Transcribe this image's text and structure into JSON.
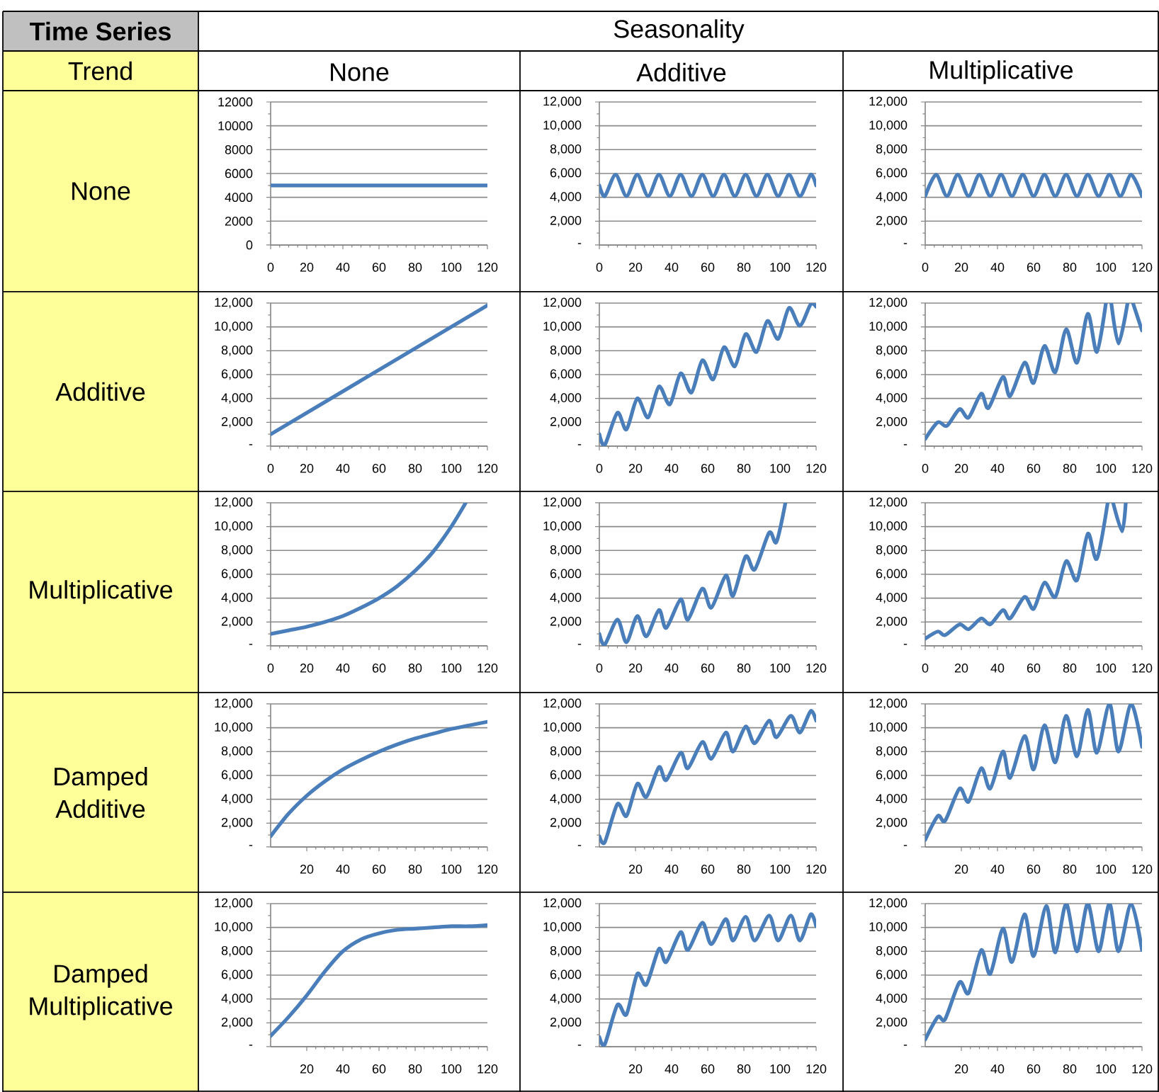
{
  "chart_data": [
    {
      "type": "other",
      "title": "Time Series",
      "annotations": [
        "Seasonality",
        "Trend",
        "None",
        "Additive",
        "Multiplicative",
        "None",
        "Additive",
        "Multiplicative",
        "Damped Additive",
        "Damped Multiplicative"
      ]
    },
    {
      "type": "line",
      "x": [
        0,
        120
      ],
      "values": [
        5000,
        5000
      ],
      "color": "#4a7ebb",
      "xlim": [
        0,
        120
      ],
      "ylim": [
        0,
        12000
      ],
      "xticks": [
        0,
        20,
        40,
        60,
        80,
        100,
        120
      ],
      "yticks": [
        0,
        2000,
        4000,
        6000,
        8000,
        10000,
        12000
      ],
      "grid": "y"
    },
    {
      "type": "line",
      "x": [
        0,
        3,
        9,
        15,
        21,
        27,
        33,
        39,
        45,
        51,
        57,
        63,
        69,
        75,
        81,
        87,
        93,
        99,
        105,
        111,
        117,
        120
      ],
      "values": [
        5000,
        4100,
        5900,
        4100,
        5900,
        4100,
        5900,
        4100,
        5900,
        4100,
        5900,
        4100,
        5900,
        4100,
        5900,
        4100,
        5900,
        4100,
        5900,
        4100,
        5900,
        5000
      ],
      "color": "#4a7ebb",
      "xlim": [
        0,
        120
      ],
      "ylim": [
        0,
        12000
      ],
      "xticks": [
        0,
        20,
        40,
        60,
        80,
        100,
        120
      ],
      "yticks": [
        {
          "value": 0,
          "label": "-"
        },
        {
          "value": 2000,
          "label": "2,000"
        },
        {
          "value": 4000,
          "label": "4,000"
        },
        {
          "value": 6000,
          "label": "6,000"
        },
        {
          "value": 8000,
          "label": "8,000"
        },
        {
          "value": 10000,
          "label": "10,000"
        },
        {
          "value": 12000,
          "label": "12,000"
        }
      ],
      "grid": "y"
    },
    {
      "type": "line",
      "x": [
        0,
        6,
        12,
        18,
        24,
        30,
        36,
        42,
        48,
        54,
        60,
        66,
        72,
        78,
        84,
        90,
        96,
        102,
        108,
        114,
        120
      ],
      "values": [
        4100,
        5900,
        4100,
        5900,
        4100,
        5900,
        4100,
        5900,
        4100,
        5900,
        4100,
        5900,
        4100,
        5900,
        4100,
        5900,
        4100,
        5900,
        4100,
        5900,
        4100
      ],
      "color": "#4a7ebb",
      "xlim": [
        0,
        120
      ],
      "ylim": [
        0,
        12000
      ],
      "xticks": [
        0,
        20,
        40,
        60,
        80,
        100,
        120
      ],
      "yticks": [
        {
          "value": 0,
          "label": "-"
        },
        {
          "value": 2000,
          "label": "2,000"
        },
        {
          "value": 4000,
          "label": "4,000"
        },
        {
          "value": 6000,
          "label": "6,000"
        },
        {
          "value": 8000,
          "label": "8,000"
        },
        {
          "value": 10000,
          "label": "10,000"
        },
        {
          "value": 12000,
          "label": "12,000"
        }
      ],
      "grid": "y"
    },
    {
      "type": "line",
      "x": [
        0,
        120
      ],
      "values": [
        1000,
        11800
      ],
      "color": "#4a7ebb",
      "xlim": [
        0,
        120
      ],
      "ylim": [
        0,
        12000
      ],
      "xticks": [
        0,
        20,
        40,
        60,
        80,
        100,
        120
      ],
      "yticks": [
        {
          "value": 0,
          "label": "-"
        },
        {
          "value": 2000,
          "label": "2,000"
        },
        {
          "value": 4000,
          "label": "4,000"
        },
        {
          "value": 6000,
          "label": "6,000"
        },
        {
          "value": 8000,
          "label": "8,000"
        },
        {
          "value": 10000,
          "label": "10,000"
        },
        {
          "value": 12000,
          "label": "12,000"
        }
      ],
      "grid": "y"
    },
    {
      "type": "line",
      "x": [
        0,
        3,
        10,
        15,
        21,
        27,
        33,
        39,
        45,
        51,
        57,
        63,
        69,
        75,
        81,
        87,
        93,
        99,
        105,
        111,
        117,
        120
      ],
      "values": [
        1000,
        100,
        2800,
        1400,
        4000,
        2400,
        5000,
        3500,
        6100,
        4500,
        7200,
        5600,
        8300,
        6700,
        9400,
        7900,
        10500,
        9000,
        11600,
        10100,
        11900,
        11700
      ],
      "color": "#4a7ebb",
      "xlim": [
        0,
        120
      ],
      "ylim": [
        0,
        12000
      ],
      "xticks": [
        0,
        20,
        40,
        60,
        80,
        100,
        120
      ],
      "yticks": [
        {
          "value": 0,
          "label": "-"
        },
        {
          "value": 2000,
          "label": "2,000"
        },
        {
          "value": 4000,
          "label": "4,000"
        },
        {
          "value": 6000,
          "label": "6,000"
        },
        {
          "value": 8000,
          "label": "8,000"
        },
        {
          "value": 10000,
          "label": "10,000"
        },
        {
          "value": 12000,
          "label": "12,000"
        }
      ],
      "grid": "y"
    },
    {
      "type": "line",
      "x": [
        0,
        7,
        12,
        19,
        24,
        31,
        35,
        43,
        47,
        55,
        60,
        66,
        72,
        78,
        84,
        90,
        95,
        100,
        101.5,
        103,
        107,
        112,
        113.5,
        115,
        120
      ],
      "values": [
        600,
        2000,
        1700,
        3100,
        2400,
        4400,
        3200,
        5800,
        4200,
        7000,
        5300,
        8400,
        6200,
        9800,
        7000,
        11100,
        7900,
        12000,
        null,
        12000,
        8600,
        12000,
        null,
        12000,
        9700
      ],
      "color": "#4a7ebb",
      "xlim": [
        0,
        120
      ],
      "ylim": [
        0,
        12000
      ],
      "xticks": [
        0,
        20,
        40,
        60,
        80,
        100,
        120
      ],
      "yticks": [
        {
          "value": 0,
          "label": "-"
        },
        {
          "value": 2000,
          "label": "2,000"
        },
        {
          "value": 4000,
          "label": "4,000"
        },
        {
          "value": 6000,
          "label": "6,000"
        },
        {
          "value": 8000,
          "label": "8,000"
        },
        {
          "value": 10000,
          "label": "10,000"
        },
        {
          "value": 12000,
          "label": "12,000"
        }
      ],
      "grid": "y"
    },
    {
      "type": "line",
      "x": [
        0,
        10,
        20,
        30,
        40,
        50,
        60,
        70,
        80,
        90,
        100,
        108
      ],
      "values": [
        1000,
        1300,
        1600,
        2000,
        2500,
        3200,
        4000,
        5000,
        6300,
        7900,
        10000,
        12000
      ],
      "color": "#4a7ebb",
      "xlim": [
        0,
        120
      ],
      "ylim": [
        0,
        12000
      ],
      "xticks": [
        0,
        20,
        40,
        60,
        80,
        100,
        120
      ],
      "yticks": [
        {
          "value": 0,
          "label": "-"
        },
        {
          "value": 2000,
          "label": "2,000"
        },
        {
          "value": 4000,
          "label": "4,000"
        },
        {
          "value": 6000,
          "label": "6,000"
        },
        {
          "value": 8000,
          "label": "8,000"
        },
        {
          "value": 10000,
          "label": "10,000"
        },
        {
          "value": 12000,
          "label": "12,000"
        }
      ],
      "grid": "y"
    },
    {
      "type": "line",
      "x": [
        0,
        3,
        10,
        15,
        21,
        26,
        33,
        37,
        45,
        49,
        57,
        62,
        70,
        74,
        81,
        86,
        94,
        98,
        103
      ],
      "values": [
        1000,
        100,
        2200,
        300,
        2500,
        800,
        3000,
        1500,
        3900,
        2200,
        4800,
        3200,
        5900,
        4200,
        7500,
        6400,
        9500,
        8700,
        12000
      ],
      "color": "#4a7ebb",
      "xlim": [
        0,
        120
      ],
      "ylim": [
        0,
        12000
      ],
      "xticks": [
        0,
        20,
        40,
        60,
        80,
        100,
        120
      ],
      "yticks": [
        {
          "value": 0,
          "label": "-"
        },
        {
          "value": 2000,
          "label": "2,000"
        },
        {
          "value": 4000,
          "label": "4,000"
        },
        {
          "value": 6000,
          "label": "6,000"
        },
        {
          "value": 8000,
          "label": "8,000"
        },
        {
          "value": 10000,
          "label": "10,000"
        },
        {
          "value": 12000,
          "label": "12,000"
        }
      ],
      "grid": "y"
    },
    {
      "type": "line",
      "x": [
        0,
        7,
        11,
        19,
        24,
        31,
        36,
        43,
        47,
        55,
        60,
        66,
        72,
        78,
        84,
        90,
        95,
        101,
        102.5,
        104,
        109,
        111
      ],
      "values": [
        600,
        1200,
        900,
        1800,
        1400,
        2300,
        1800,
        3000,
        2300,
        4100,
        3100,
        5300,
        4100,
        7100,
        5500,
        9400,
        7300,
        12000,
        null,
        12000,
        9600,
        12000
      ],
      "color": "#4a7ebb",
      "xlim": [
        0,
        120
      ],
      "ylim": [
        0,
        12000
      ],
      "xticks": [
        0,
        20,
        40,
        60,
        80,
        100,
        120
      ],
      "yticks": [
        {
          "value": 0,
          "label": "-"
        },
        {
          "value": 2000,
          "label": "2,000"
        },
        {
          "value": 4000,
          "label": "4,000"
        },
        {
          "value": 6000,
          "label": "6,000"
        },
        {
          "value": 8000,
          "label": "8,000"
        },
        {
          "value": 10000,
          "label": "10,000"
        },
        {
          "value": 12000,
          "label": "12,000"
        }
      ],
      "grid": "y"
    },
    {
      "type": "line",
      "x": [
        0,
        10,
        20,
        30,
        40,
        50,
        60,
        70,
        80,
        90,
        100,
        110,
        120
      ],
      "values": [
        900,
        2800,
        4300,
        5500,
        6500,
        7300,
        8000,
        8600,
        9100,
        9500,
        9900,
        10200,
        10500
      ],
      "color": "#4a7ebb",
      "xlim": [
        0,
        120
      ],
      "ylim": [
        0,
        12000
      ],
      "xticks": [
        20,
        40,
        60,
        80,
        100,
        120
      ],
      "yticks": [
        {
          "value": 0,
          "label": "-"
        },
        {
          "value": 2000,
          "label": "2,000"
        },
        {
          "value": 4000,
          "label": "4,000"
        },
        {
          "value": 6000,
          "label": "6,000"
        },
        {
          "value": 8000,
          "label": "8,000"
        },
        {
          "value": 10000,
          "label": "10,000"
        },
        {
          "value": 12000,
          "label": "12,000"
        }
      ],
      "grid": "y"
    },
    {
      "type": "line",
      "x": [
        0,
        3,
        10,
        15,
        21,
        26,
        33,
        37,
        45,
        49,
        57,
        62,
        70,
        74,
        81,
        86,
        94,
        98,
        106,
        111,
        117,
        120
      ],
      "values": [
        900,
        400,
        3600,
        2600,
        5300,
        4200,
        6700,
        5600,
        7900,
        6600,
        8800,
        7400,
        9600,
        8000,
        10100,
        8700,
        10600,
        9200,
        11000,
        9600,
        11400,
        10600
      ],
      "color": "#4a7ebb",
      "xlim": [
        0,
        120
      ],
      "ylim": [
        0,
        12000
      ],
      "xticks": [
        20,
        40,
        60,
        80,
        100,
        120
      ],
      "yticks": [
        {
          "value": 0,
          "label": "-"
        },
        {
          "value": 2000,
          "label": "2,000"
        },
        {
          "value": 4000,
          "label": "4,000"
        },
        {
          "value": 6000,
          "label": "6,000"
        },
        {
          "value": 8000,
          "label": "8,000"
        },
        {
          "value": 10000,
          "label": "10,000"
        },
        {
          "value": 12000,
          "label": "12,000"
        }
      ],
      "grid": "y"
    },
    {
      "type": "line",
      "x": [
        0,
        7,
        11,
        19,
        24,
        31,
        36,
        43,
        47,
        55,
        60,
        66,
        72,
        78,
        84,
        90,
        95,
        102,
        107,
        114,
        120
      ],
      "values": [
        600,
        2600,
        2200,
        4900,
        3800,
        6600,
        4900,
        8000,
        5800,
        9300,
        6500,
        10200,
        7100,
        11000,
        7600,
        11500,
        7900,
        12000,
        8000,
        12000,
        8400
      ],
      "color": "#4a7ebb",
      "xlim": [
        0,
        120
      ],
      "ylim": [
        0,
        12000
      ],
      "xticks": [
        20,
        40,
        60,
        80,
        100,
        120
      ],
      "yticks": [
        {
          "value": 0,
          "label": "-"
        },
        {
          "value": 2000,
          "label": "2,000"
        },
        {
          "value": 4000,
          "label": "4,000"
        },
        {
          "value": 6000,
          "label": "6,000"
        },
        {
          "value": 8000,
          "label": "8,000"
        },
        {
          "value": 10000,
          "label": "10,000"
        },
        {
          "value": 12000,
          "label": "12,000"
        }
      ],
      "grid": "y"
    },
    {
      "type": "line",
      "x": [
        0,
        10,
        20,
        30,
        40,
        50,
        60,
        70,
        80,
        90,
        100,
        110,
        120
      ],
      "values": [
        900,
        2500,
        4300,
        6300,
        8000,
        9000,
        9500,
        9800,
        9900,
        10000,
        10100,
        10100,
        10200
      ],
      "color": "#4a7ebb",
      "xlim": [
        0,
        120
      ],
      "ylim": [
        0,
        12000
      ],
      "xticks": [
        20,
        40,
        60,
        80,
        100,
        120
      ],
      "yticks": [
        {
          "value": 0,
          "label": "-"
        },
        {
          "value": 2000,
          "label": "2,000"
        },
        {
          "value": 4000,
          "label": "4,000"
        },
        {
          "value": 6000,
          "label": "6,000"
        },
        {
          "value": 8000,
          "label": "8,000"
        },
        {
          "value": 10000,
          "label": "10,000"
        },
        {
          "value": 12000,
          "label": "12,000"
        }
      ],
      "grid": "y"
    },
    {
      "type": "line",
      "x": [
        0,
        3,
        10,
        15,
        21,
        26,
        33,
        37,
        45,
        49,
        57,
        62,
        70,
        74,
        81,
        86,
        94,
        99,
        106,
        111,
        117,
        120
      ],
      "values": [
        800,
        200,
        3500,
        2700,
        6100,
        5200,
        8200,
        7100,
        9600,
        8100,
        10400,
        8600,
        10700,
        8900,
        10900,
        8900,
        11000,
        8900,
        11000,
        8900,
        11100,
        10100
      ],
      "color": "#4a7ebb",
      "xlim": [
        0,
        120
      ],
      "ylim": [
        0,
        12000
      ],
      "xticks": [
        20,
        40,
        60,
        80,
        100,
        120
      ],
      "yticks": [
        {
          "value": 0,
          "label": "-"
        },
        {
          "value": 2000,
          "label": "2,000"
        },
        {
          "value": 4000,
          "label": "4,000"
        },
        {
          "value": 6000,
          "label": "6,000"
        },
        {
          "value": 8000,
          "label": "8,000"
        },
        {
          "value": 10000,
          "label": "10,000"
        },
        {
          "value": 12000,
          "label": "12,000"
        }
      ],
      "grid": "y"
    },
    {
      "type": "line",
      "x": [
        0,
        7,
        11,
        19,
        24,
        31,
        36,
        43,
        48,
        55,
        60,
        67,
        72,
        78,
        84,
        90,
        96,
        102,
        107,
        114,
        120
      ],
      "values": [
        600,
        2500,
        2300,
        5400,
        4500,
        8100,
        6100,
        9900,
        7100,
        11100,
        7600,
        11800,
        7900,
        12000,
        8000,
        12000,
        8000,
        12000,
        8000,
        12000,
        8100
      ],
      "color": "#4a7ebb",
      "xlim": [
        0,
        120
      ],
      "ylim": [
        0,
        12000
      ],
      "xticks": [
        20,
        40,
        60,
        80,
        100,
        120
      ],
      "yticks": [
        {
          "value": 0,
          "label": "-"
        },
        {
          "value": 2000,
          "label": "2,000"
        },
        {
          "value": 4000,
          "label": "4,000"
        },
        {
          "value": 6000,
          "label": "6,000"
        },
        {
          "value": 8000,
          "label": "8,000"
        },
        {
          "value": 10000,
          "label": "10,000"
        },
        {
          "value": 12000,
          "label": "12,000"
        }
      ],
      "grid": "y"
    }
  ]
}
